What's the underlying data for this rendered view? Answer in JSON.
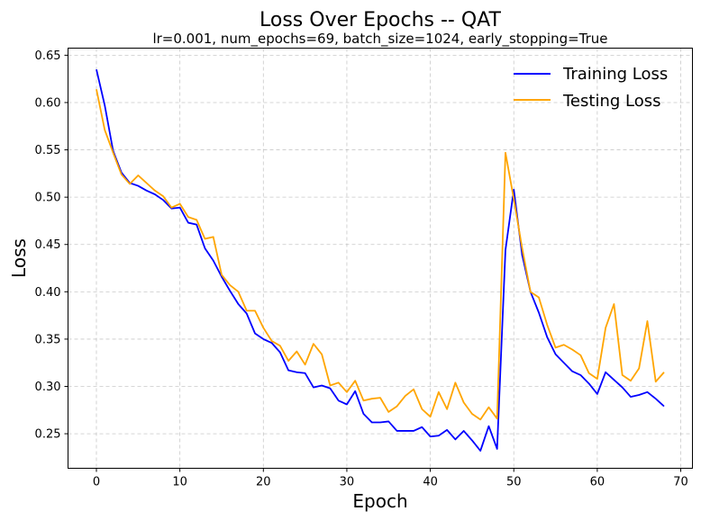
{
  "chart_data": {
    "type": "line",
    "title": "Loss Over Epochs -- QAT",
    "subtitle": "lr=0.001, num_epochs=69, batch_size=1024, early_stopping=True",
    "xlabel": "Epoch",
    "ylabel": "Loss",
    "xlim": [
      -3.4,
      71.4
    ],
    "ylim": [
      0.2135,
      0.6575
    ],
    "xticks": [
      0,
      10,
      20,
      30,
      40,
      50,
      60,
      70
    ],
    "yticks": [
      0.25,
      0.3,
      0.35,
      0.4,
      0.45,
      0.5,
      0.55,
      0.6,
      0.65
    ],
    "xtick_labels": [
      "0",
      "10",
      "20",
      "30",
      "40",
      "50",
      "60",
      "70"
    ],
    "ytick_labels": [
      "0.25",
      "0.30",
      "0.35",
      "0.40",
      "0.45",
      "0.50",
      "0.55",
      "0.60",
      "0.65"
    ],
    "grid": true,
    "legend_position": "top-right",
    "x": [
      0,
      1,
      2,
      3,
      4,
      5,
      6,
      7,
      8,
      9,
      10,
      11,
      12,
      13,
      14,
      15,
      16,
      17,
      18,
      19,
      20,
      21,
      22,
      23,
      24,
      25,
      26,
      27,
      28,
      29,
      30,
      31,
      32,
      33,
      34,
      35,
      36,
      37,
      38,
      39,
      40,
      41,
      42,
      43,
      44,
      45,
      46,
      47,
      48,
      49,
      50,
      51,
      52,
      53,
      54,
      55,
      56,
      57,
      58,
      59,
      60,
      61,
      62,
      63,
      64,
      65,
      66,
      67,
      68
    ],
    "series": [
      {
        "name": "Training Loss",
        "color": "#0000ff",
        "values": [
          0.635,
          0.597,
          0.549,
          0.526,
          0.515,
          0.512,
          0.507,
          0.503,
          0.497,
          0.488,
          0.489,
          0.473,
          0.471,
          0.446,
          0.433,
          0.416,
          0.401,
          0.387,
          0.377,
          0.356,
          0.35,
          0.346,
          0.336,
          0.317,
          0.315,
          0.314,
          0.299,
          0.301,
          0.298,
          0.285,
          0.281,
          0.295,
          0.271,
          0.262,
          0.262,
          0.263,
          0.253,
          0.253,
          0.253,
          0.257,
          0.247,
          0.248,
          0.254,
          0.244,
          0.253,
          0.243,
          0.232,
          0.258,
          0.234,
          0.444,
          0.508,
          0.439,
          0.4,
          0.378,
          0.352,
          0.334,
          0.325,
          0.316,
          0.312,
          0.303,
          0.292,
          0.315,
          0.307,
          0.299,
          0.289,
          0.291,
          0.294,
          0.287,
          0.279
        ]
      },
      {
        "name": "Testing Loss",
        "color": "#ffa500",
        "values": [
          0.614,
          0.571,
          0.547,
          0.524,
          0.514,
          0.523,
          0.515,
          0.507,
          0.501,
          0.489,
          0.493,
          0.479,
          0.476,
          0.456,
          0.458,
          0.418,
          0.407,
          0.4,
          0.38,
          0.38,
          0.362,
          0.348,
          0.343,
          0.327,
          0.337,
          0.323,
          0.345,
          0.334,
          0.301,
          0.304,
          0.294,
          0.306,
          0.285,
          0.287,
          0.288,
          0.273,
          0.279,
          0.29,
          0.297,
          0.276,
          0.268,
          0.294,
          0.276,
          0.304,
          0.283,
          0.271,
          0.265,
          0.278,
          0.266,
          0.547,
          0.498,
          0.446,
          0.4,
          0.394,
          0.365,
          0.341,
          0.344,
          0.339,
          0.333,
          0.314,
          0.308,
          0.362,
          0.387,
          0.312,
          0.306,
          0.319,
          0.369,
          0.305,
          0.315
        ]
      }
    ]
  }
}
